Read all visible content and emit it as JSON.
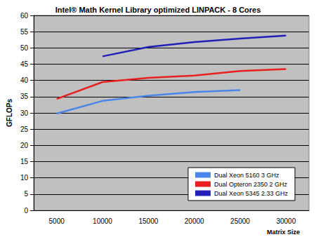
{
  "chart_data": {
    "type": "line",
    "title": "Intel® Math Kernel Library optimized LINPACK - 8 Cores",
    "x_label": "Matrix Size",
    "y_label": "GFLOPs",
    "categories": [
      "5000",
      "10000",
      "15000",
      "20000",
      "25000",
      "30000"
    ],
    "series": [
      {
        "name": "Dual Xeon 5160 3 GHz",
        "color": "#4a86e8",
        "values": [
          29.8,
          33.7,
          35.3,
          36.4,
          37.0,
          null
        ]
      },
      {
        "name": "Dual Opteron 2350 2 GHz",
        "color": "#e8201f",
        "values": [
          34.3,
          39.5,
          40.8,
          41.5,
          42.9,
          43.5
        ]
      },
      {
        "name": "Dual Xeon 5345 2.33 GHz",
        "color": "#2020b8",
        "values": [
          null,
          47.4,
          50.3,
          51.8,
          52.9,
          53.8
        ]
      }
    ],
    "ylim": [
      0,
      60
    ],
    "yticks": [
      0,
      5,
      10,
      15,
      20,
      25,
      30,
      35,
      40,
      45,
      50,
      55,
      60
    ],
    "grid": true,
    "legend": "lower right"
  }
}
